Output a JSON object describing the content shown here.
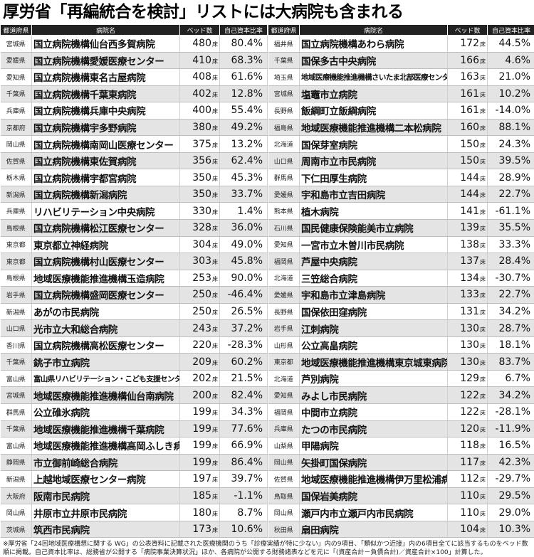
{
  "title": "厚労省「再編統合を検討」リストには大病院も含まれる",
  "headers": {
    "pref": "都道府県",
    "hospital": "病院名",
    "beds": "ベッド数",
    "ratio": "自己資本比率"
  },
  "bed_unit": "床",
  "left_rows": [
    {
      "pref": "宮城県",
      "hospital": "国立病院機構仙台西多賀病院",
      "beds": "480",
      "ratio": "80.4%"
    },
    {
      "pref": "愛媛県",
      "hospital": "国立病院機構愛媛医療センター",
      "beds": "410",
      "ratio": "68.3%"
    },
    {
      "pref": "愛知県",
      "hospital": "国立病院機構東名古屋病院",
      "beds": "408",
      "ratio": "61.6%"
    },
    {
      "pref": "千葉県",
      "hospital": "国立病院機構千葉東病院",
      "beds": "402",
      "ratio": "12.8%"
    },
    {
      "pref": "兵庫県",
      "hospital": "国立病院機構兵庫中央病院",
      "beds": "400",
      "ratio": "55.4%"
    },
    {
      "pref": "京都府",
      "hospital": "国立病院機構宇多野病院",
      "beds": "380",
      "ratio": "49.2%"
    },
    {
      "pref": "岡山県",
      "hospital": "国立病院機構南岡山医療センター",
      "beds": "375",
      "ratio": "13.2%"
    },
    {
      "pref": "佐賀県",
      "hospital": "国立病院機構東佐賀病院",
      "beds": "356",
      "ratio": "62.4%"
    },
    {
      "pref": "栃木県",
      "hospital": "国立病院機構宇都宮病院",
      "beds": "350",
      "ratio": "45.3%"
    },
    {
      "pref": "新潟県",
      "hospital": "国立病院機構新潟病院",
      "beds": "350",
      "ratio": "33.7%"
    },
    {
      "pref": "兵庫県",
      "hospital": "リハビリテーション中央病院",
      "beds": "330",
      "ratio": "1.4%"
    },
    {
      "pref": "島根県",
      "hospital": "国立病院機構松江医療センター",
      "beds": "328",
      "ratio": "36.0%"
    },
    {
      "pref": "東京都",
      "hospital": "東京都立神経病院",
      "beds": "304",
      "ratio": "49.0%"
    },
    {
      "pref": "東京都",
      "hospital": "国立病院機構村山医療センター",
      "beds": "303",
      "ratio": "45.8%"
    },
    {
      "pref": "島根県",
      "hospital": "地域医療機能推進機構玉造病院",
      "beds": "253",
      "ratio": "90.0%"
    },
    {
      "pref": "岩手県",
      "hospital": "国立病院機構盛岡医療センター",
      "beds": "250",
      "ratio": "-46.4%"
    },
    {
      "pref": "新潟県",
      "hospital": "あがの市民病院",
      "beds": "250",
      "ratio": "26.5%"
    },
    {
      "pref": "山口県",
      "hospital": "光市立大和総合病院",
      "beds": "243",
      "ratio": "37.2%"
    },
    {
      "pref": "香川県",
      "hospital": "国立病院機構高松医療センター",
      "beds": "220",
      "ratio": "-28.3%"
    },
    {
      "pref": "千葉県",
      "hospital": "銚子市立病院",
      "beds": "209",
      "ratio": "60.2%"
    },
    {
      "pref": "富山県",
      "hospital": "富山県リハビリテーション・こども支援センター",
      "beds": "202",
      "ratio": "21.5%",
      "small": true
    },
    {
      "pref": "宮城県",
      "hospital": "地域医療機能推進機構仙台南病院",
      "beds": "200",
      "ratio": "82.4%"
    },
    {
      "pref": "群馬県",
      "hospital": "公立碓氷病院",
      "beds": "199",
      "ratio": "34.3%"
    },
    {
      "pref": "千葉県",
      "hospital": "地域医療機能推進機構千葉病院",
      "beds": "199",
      "ratio": "77.6%"
    },
    {
      "pref": "富山県",
      "hospital": "地域医療機能推進機構高岡ふしき病院",
      "beds": "199",
      "ratio": "66.9%"
    },
    {
      "pref": "静岡県",
      "hospital": "市立御前崎総合病院",
      "beds": "199",
      "ratio": "86.4%"
    },
    {
      "pref": "新潟県",
      "hospital": "上越地域医療センター病院",
      "beds": "197",
      "ratio": "39.7%"
    },
    {
      "pref": "大阪府",
      "hospital": "阪南市民病院",
      "beds": "185",
      "ratio": "-1.1%"
    },
    {
      "pref": "岡山県",
      "hospital": "井原市立井原市民病院",
      "beds": "180",
      "ratio": "8.7%"
    },
    {
      "pref": "茨城県",
      "hospital": "筑西市民病院",
      "beds": "173",
      "ratio": "10.6%"
    }
  ],
  "right_rows": [
    {
      "pref": "福井県",
      "hospital": "国立病院機構あわら病院",
      "beds": "172",
      "ratio": "44.5%"
    },
    {
      "pref": "千葉県",
      "hospital": "国保多古中央病院",
      "beds": "166",
      "ratio": "4.6%"
    },
    {
      "pref": "埼玉県",
      "hospital": "地域医療機能推進機構さいたま北部医療センター",
      "beds": "163",
      "ratio": "21.0%",
      "small": true
    },
    {
      "pref": "宮城県",
      "hospital": "塩竈市立病院",
      "beds": "161",
      "ratio": "10.2%"
    },
    {
      "pref": "長野県",
      "hospital": "飯綱町立飯綱病院",
      "beds": "161",
      "ratio": "-14.0%"
    },
    {
      "pref": "福島県",
      "hospital": "地域医療機能推進機構二本松病院",
      "beds": "160",
      "ratio": "88.1%"
    },
    {
      "pref": "北海道",
      "hospital": "国保芽室病院",
      "beds": "150",
      "ratio": "24.3%"
    },
    {
      "pref": "山口県",
      "hospital": "周南市立市民病院",
      "beds": "150",
      "ratio": "39.5%"
    },
    {
      "pref": "群馬県",
      "hospital": "下仁田厚生病院",
      "beds": "144",
      "ratio": "28.9%"
    },
    {
      "pref": "愛媛県",
      "hospital": "宇和島市立吉田病院",
      "beds": "144",
      "ratio": "22.7%"
    },
    {
      "pref": "熊本県",
      "hospital": "植木病院",
      "beds": "141",
      "ratio": "-61.1%"
    },
    {
      "pref": "石川県",
      "hospital": "国民健康保険能美市立病院",
      "beds": "139",
      "ratio": "35.5%"
    },
    {
      "pref": "愛知県",
      "hospital": "一宮市立木曽川市民病院",
      "beds": "138",
      "ratio": "33.3%"
    },
    {
      "pref": "福岡県",
      "hospital": "芦屋中央病院",
      "beds": "137",
      "ratio": "28.4%"
    },
    {
      "pref": "北海道",
      "hospital": "三笠総合病院",
      "beds": "134",
      "ratio": "-30.7%"
    },
    {
      "pref": "愛媛県",
      "hospital": "宇和島市立津島病院",
      "beds": "133",
      "ratio": "22.7%"
    },
    {
      "pref": "長野県",
      "hospital": "国保依田窪病院",
      "beds": "131",
      "ratio": "34.2%"
    },
    {
      "pref": "岩手県",
      "hospital": "江刺病院",
      "beds": "130",
      "ratio": "28.7%"
    },
    {
      "pref": "山形県",
      "hospital": "公立高畠病院",
      "beds": "130",
      "ratio": "18.1%"
    },
    {
      "pref": "東京都",
      "hospital": "地域医療機能推進機構東京城東病院",
      "beds": "130",
      "ratio": "83.7%"
    },
    {
      "pref": "北海道",
      "hospital": "芦別病院",
      "beds": "129",
      "ratio": "6.7%"
    },
    {
      "pref": "愛知県",
      "hospital": "みよし市民病院",
      "beds": "122",
      "ratio": "34.2%"
    },
    {
      "pref": "福岡県",
      "hospital": "中間市立病院",
      "beds": "122",
      "ratio": "-28.1%"
    },
    {
      "pref": "兵庫県",
      "hospital": "たつの市民病院",
      "beds": "120",
      "ratio": "-11.9%"
    },
    {
      "pref": "山梨県",
      "hospital": "甲陽病院",
      "beds": "118",
      "ratio": "16.5%"
    },
    {
      "pref": "岡山県",
      "hospital": "矢掛町国保病院",
      "beds": "117",
      "ratio": "42.3%"
    },
    {
      "pref": "佐賀県",
      "hospital": "地域医療機能推進機構伊万里松浦病院",
      "beds": "112",
      "ratio": "-29.7%"
    },
    {
      "pref": "鳥取県",
      "hospital": "国保岩美病院",
      "beds": "110",
      "ratio": "29.5%"
    },
    {
      "pref": "岡山県",
      "hospital": "瀬戸内市立瀬戸内市民病院",
      "beds": "110",
      "ratio": "29.0%"
    },
    {
      "pref": "秋田県",
      "hospital": "扇田病院",
      "beds": "104",
      "ratio": "10.3%"
    }
  ],
  "note": "※厚労省「24回地域医療構想に関する WG」の公表資料に記載された医療機関のうち「診療実績が特に少ない」内の9項目、「類似かつ近接」内の6項目全てに該当するものをベッド数順に掲載。自己資本比率は、総務省が公開する「病院事業決算状況」ほか、各病院が公開する財務諸表などを元に「(資産合計－負債合計)／資産合計×100」計算した。"
}
